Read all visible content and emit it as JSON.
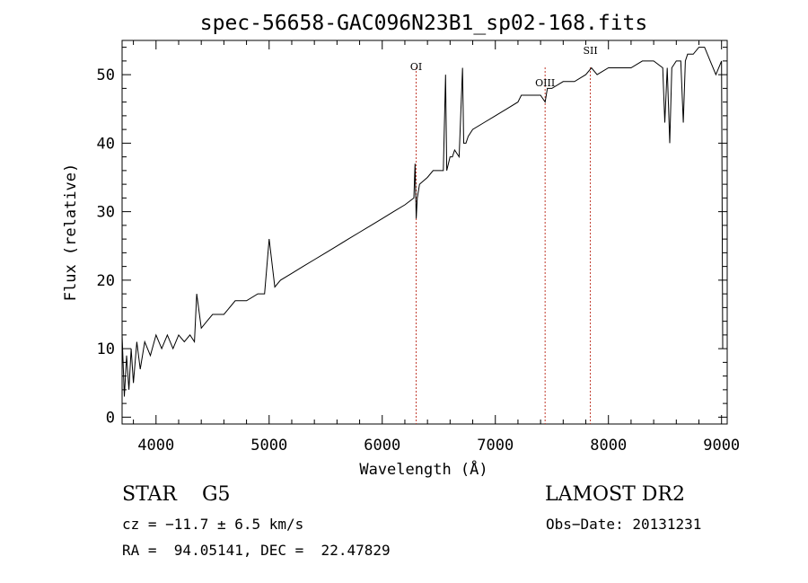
{
  "chart_data": {
    "type": "line",
    "title": "spec-56658-GAC096N23B1_sp02-168.fits",
    "xlabel": "Wavelength (Å)",
    "ylabel": "Flux (relative)",
    "xlim": [
      3700,
      9050
    ],
    "ylim": [
      -1,
      55
    ],
    "xticks": [
      4000,
      5000,
      6000,
      7000,
      8000,
      9000
    ],
    "yticks": [
      0,
      10,
      20,
      30,
      40,
      50
    ],
    "grid": false,
    "series": [
      {
        "name": "spectrum",
        "x": [
          3700,
          3720,
          3740,
          3760,
          3780,
          3800,
          3830,
          3860,
          3900,
          3950,
          4000,
          4050,
          4100,
          4150,
          4200,
          4250,
          4300,
          4340,
          4360,
          4400,
          4450,
          4500,
          4600,
          4700,
          4800,
          4900,
          4960,
          5000,
          5050,
          5100,
          5200,
          5300,
          5400,
          5500,
          5600,
          5700,
          5800,
          5900,
          6000,
          6100,
          6200,
          6280,
          6290,
          6300,
          6310,
          6330,
          6400,
          6450,
          6500,
          6540,
          6560,
          6570,
          6600,
          6620,
          6640,
          6680,
          6710,
          6720,
          6740,
          6760,
          6800,
          6900,
          7000,
          7100,
          7200,
          7230,
          7300,
          7400,
          7440,
          7460,
          7500,
          7600,
          7700,
          7800,
          7850,
          7900,
          8000,
          8100,
          8200,
          8300,
          8400,
          8480,
          8498,
          8520,
          8542,
          8560,
          8600,
          8640,
          8662,
          8680,
          8700,
          8750,
          8800,
          8850,
          8900,
          8950,
          9000,
          9010
        ],
        "y": [
          12,
          3,
          9,
          4,
          10,
          5,
          11,
          7,
          11,
          9,
          12,
          10,
          12,
          10,
          12,
          11,
          12,
          11,
          18,
          13,
          14,
          15,
          15,
          17,
          17,
          18,
          18,
          26,
          19,
          20,
          21,
          22,
          23,
          24,
          25,
          26,
          27,
          28,
          29,
          30,
          31,
          32,
          37,
          29,
          32,
          34,
          35,
          36,
          36,
          36,
          50,
          36,
          38,
          38,
          39,
          38,
          51,
          40,
          40,
          41,
          42,
          43,
          44,
          45,
          46,
          47,
          47,
          47,
          46,
          48,
          48,
          49,
          49,
          50,
          51,
          50,
          51,
          51,
          51,
          52,
          52,
          51,
          43,
          51,
          40,
          51,
          52,
          52,
          43,
          52,
          53,
          53,
          54,
          54,
          52,
          50,
          52,
          10
        ]
      }
    ],
    "annotations": [
      {
        "label": "OI",
        "x": 6300
      },
      {
        "label": "OIII",
        "x": 7440
      },
      {
        "label": "SII",
        "x": 7840
      }
    ]
  },
  "info": {
    "class_text": "STAR    G5",
    "survey": "LAMOST DR2",
    "cz": "cz = −11.7 ± 6.5 km/s",
    "obs_date": "Obs−Date: 20131231",
    "radec": "RA =  94.05141, DEC =  22.47829"
  }
}
